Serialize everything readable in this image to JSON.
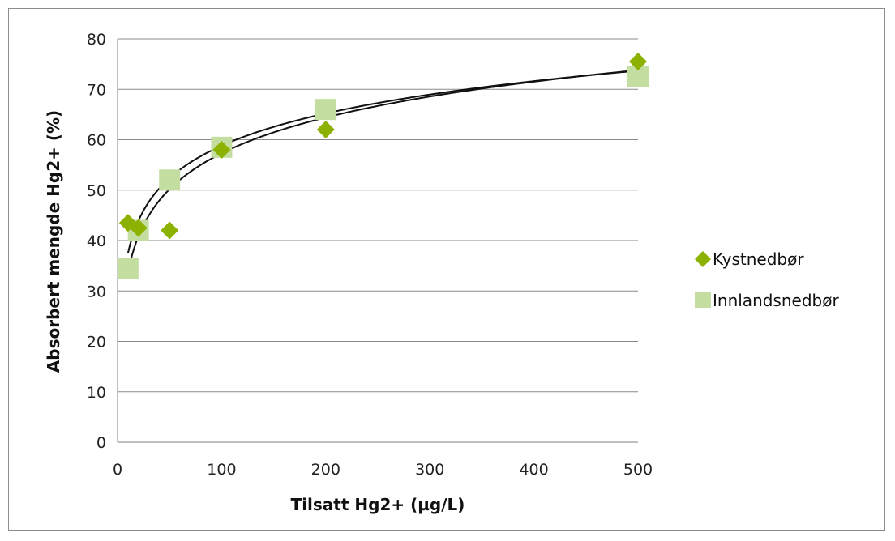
{
  "chart_data": {
    "type": "scatter",
    "xlabel": "Tilsatt Hg2+ (µg/L)",
    "ylabel": "Absorbert mengde Hg2+ (%)",
    "xlim": [
      0,
      500
    ],
    "ylim": [
      0,
      80
    ],
    "x_ticks": [
      "0",
      "100",
      "200",
      "300",
      "400",
      "500"
    ],
    "y_ticks": [
      "0",
      "10",
      "20",
      "30",
      "40",
      "50",
      "60",
      "70",
      "80"
    ],
    "grid": "horizontal",
    "legend_position": "right",
    "series": [
      {
        "name": "Kystnedbør",
        "marker": "diamond",
        "color": "#8db100",
        "x": [
          10,
          20,
          50,
          100,
          200,
          500
        ],
        "y": [
          43.5,
          42.5,
          42,
          58,
          62,
          75.5
        ],
        "trendline": {
          "type": "logarithmic",
          "slope": 9.25,
          "intercept": 16.2
        }
      },
      {
        "name": "Innlandsnedbør",
        "marker": "square",
        "color": "#c3dea0",
        "x": [
          10,
          20,
          50,
          100,
          200,
          500
        ],
        "y": [
          34.5,
          42,
          52,
          58.5,
          66,
          72.5
        ],
        "trendline": {
          "type": "logarithmic",
          "slope": 10.25,
          "intercept": 10.1
        }
      }
    ]
  }
}
